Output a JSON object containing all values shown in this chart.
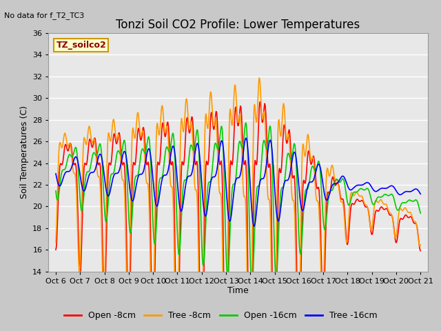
{
  "title": "Tonzi Soil CO2 Profile: Lower Temperatures",
  "subtitle": "No data for f_T2_TC3",
  "ylabel": "Soil Temperatures (C)",
  "xlabel": "Time",
  "ylim": [
    14,
    36
  ],
  "yticks": [
    14,
    16,
    18,
    20,
    22,
    24,
    26,
    28,
    30,
    32,
    34,
    36
  ],
  "xtick_labels": [
    "Oct 6",
    "Oct 7",
    "Oct 8",
    "Oct 9",
    "Oct 10",
    "Oct 11",
    "Oct 12",
    "Oct 13",
    "Oct 14",
    "Oct 15",
    "Oct 16",
    "Oct 17",
    "Oct 18",
    "Oct 19",
    "Oct 20",
    "Oct 21"
  ],
  "legend_labels": [
    "Open -8cm",
    "Tree -8cm",
    "Open -16cm",
    "Tree -16cm"
  ],
  "legend_colors": [
    "#ff0000",
    "#ff9900",
    "#00cc00",
    "#0000ff"
  ],
  "line_width": 1.2,
  "fig_bg_color": "#c8c8c8",
  "plot_bg_color": "#e8e8e8",
  "grid_color": "#ffffff",
  "annotation_text": "TZ_soilco2",
  "annotation_color": "#8b0000",
  "annotation_bg": "#ffffcc",
  "annotation_border": "#cc9900",
  "title_fontsize": 12,
  "axis_fontsize": 9,
  "tick_fontsize": 8
}
